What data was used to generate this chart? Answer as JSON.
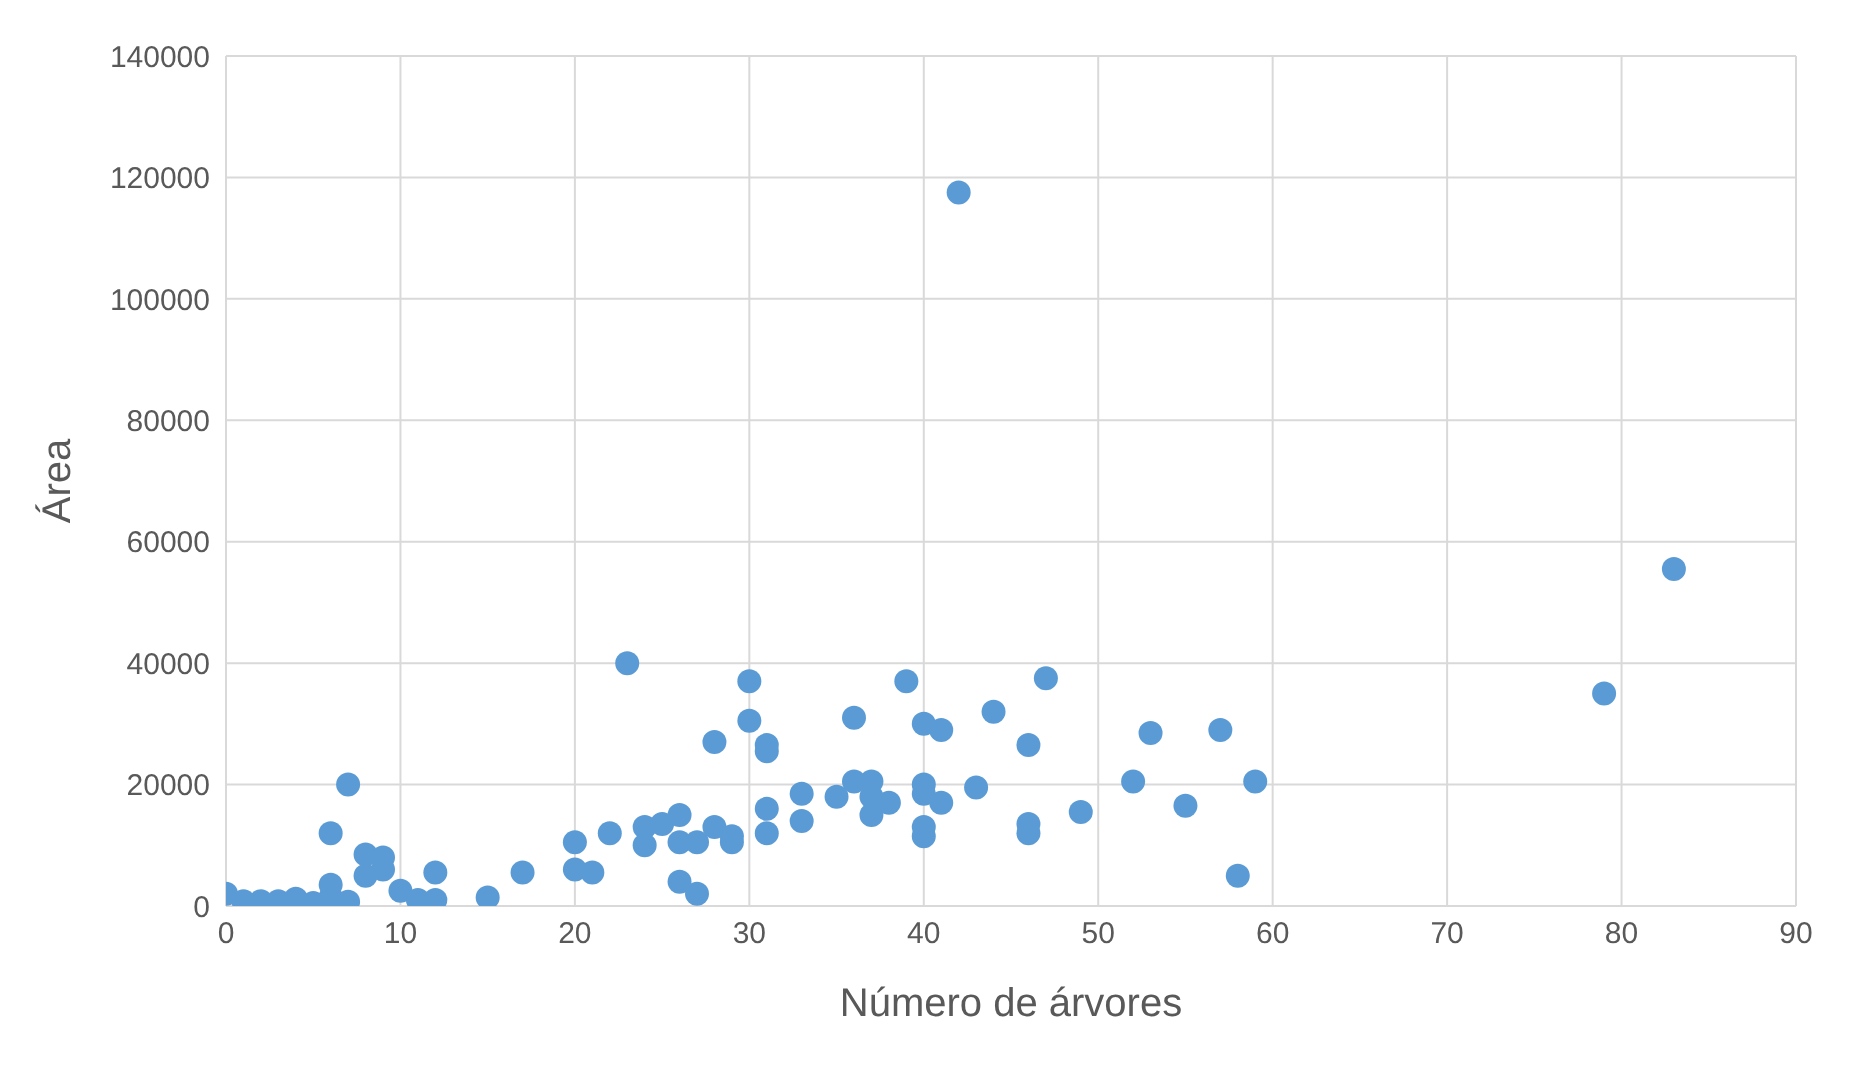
{
  "chart_data": {
    "type": "scatter",
    "xlabel": "Número de árvores",
    "ylabel": "Área",
    "x": [
      0,
      1,
      2,
      3,
      4,
      5,
      6,
      6,
      6,
      7,
      7,
      8,
      8,
      9,
      9,
      10,
      11,
      12,
      12,
      15,
      17,
      20,
      20,
      21,
      22,
      23,
      24,
      24,
      25,
      26,
      26,
      26,
      27,
      27,
      28,
      28,
      29,
      29,
      30,
      30,
      31,
      31,
      31,
      31,
      33,
      33,
      35,
      36,
      36,
      37,
      37,
      37,
      38,
      39,
      40,
      40,
      40,
      40,
      40,
      41,
      41,
      42,
      43,
      44,
      46,
      46,
      46,
      47,
      49,
      52,
      53,
      55,
      57,
      58,
      59,
      79,
      83
    ],
    "series": [
      {
        "color": "#5b9bd5",
        "values": [
          2000,
          800,
          800,
          800,
          1200,
          500,
          3500,
          12000,
          1500,
          700,
          20000,
          8500,
          5000,
          8000,
          6000,
          2500,
          1000,
          1000,
          5500,
          1400,
          5500,
          10500,
          6000,
          5500,
          12000,
          40000,
          10000,
          13000,
          13500,
          15000,
          10500,
          4000,
          10500,
          2000,
          13000,
          27000,
          10500,
          11500,
          30500,
          37000,
          25500,
          26500,
          16000,
          12000,
          18500,
          14000,
          18000,
          20500,
          31000,
          20500,
          15000,
          18000,
          17000,
          37000,
          30000,
          20000,
          18500,
          13000,
          11500,
          29000,
          17000,
          117500,
          19500,
          32000,
          26500,
          13500,
          12000,
          37500,
          15500,
          20500,
          28500,
          16500,
          29000,
          5000,
          20500,
          35000,
          55500
        ]
      }
    ],
    "xlim": [
      0,
      90
    ],
    "xticks": [
      0,
      10,
      20,
      30,
      40,
      50,
      60,
      70,
      80,
      90
    ],
    "ylim": [
      0,
      140000
    ],
    "yticks": [
      0,
      20000,
      40000,
      60000,
      80000,
      100000,
      120000,
      140000
    ],
    "grid": true,
    "marker": "circle"
  }
}
